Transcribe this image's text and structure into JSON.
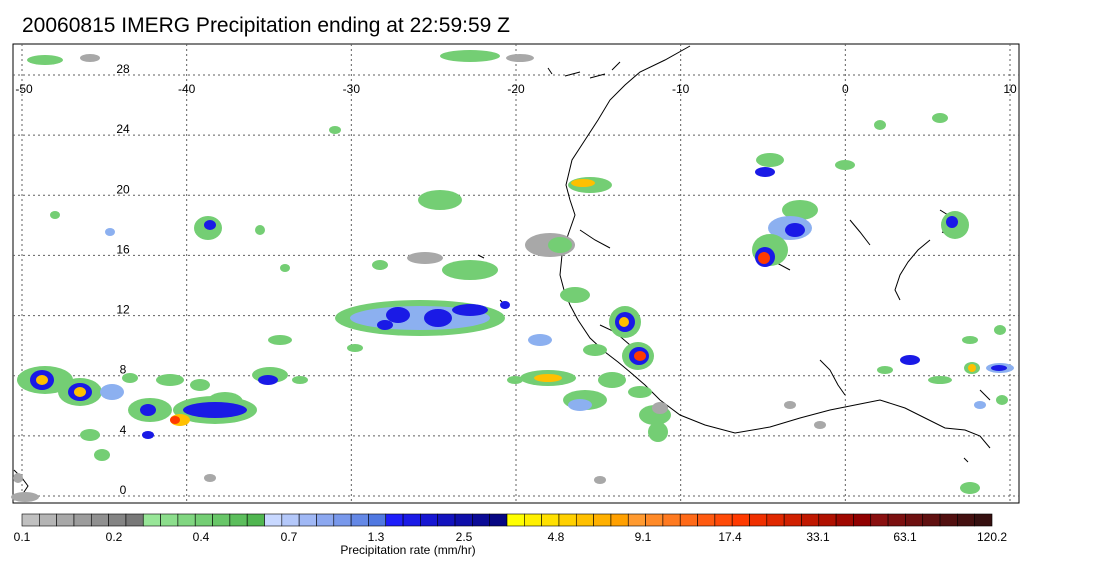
{
  "title": "20060815 IMERG Precipitation ending at 22:59:59 Z",
  "map": {
    "lon_range": [
      -50,
      10
    ],
    "lat_range": [
      -1,
      30
    ],
    "lon_ticks": [
      "-50",
      "-40",
      "-30",
      "-20",
      "-10",
      "0",
      "10"
    ],
    "lat_ticks": [
      "28",
      "24",
      "20",
      "16",
      "12",
      "8",
      "4",
      "0"
    ],
    "gridlines": "dotted",
    "coastlines": true
  },
  "colorbar": {
    "label": "Precipitation rate (mm/hr)",
    "tick_labels": [
      "0.1",
      "0.2",
      "0.4",
      "0.7",
      "1.3",
      "2.5",
      "4.8",
      "9.1",
      "17.4",
      "33.1",
      "63.1",
      "120.2"
    ],
    "colors": [
      "#c0c0c0",
      "#b4b4b4",
      "#a8a8a8",
      "#9c9c9c",
      "#909090",
      "#848484",
      "#787878",
      "#98e698",
      "#8cde8c",
      "#80d680",
      "#74ce74",
      "#68c668",
      "#5cbe5c",
      "#50b650",
      "#c8d8ff",
      "#b4c8fa",
      "#a0b8f5",
      "#8ca8f0",
      "#7898eb",
      "#6488e6",
      "#5078e1",
      "#1e1efa",
      "#1a1ae6",
      "#1616d2",
      "#1212be",
      "#0e0eaa",
      "#0a0a96",
      "#060682",
      "#ffff00",
      "#fff000",
      "#ffe000",
      "#ffd000",
      "#ffc000",
      "#ffb000",
      "#ffa000",
      "#ff9a30",
      "#ff8a28",
      "#ff7a20",
      "#ff6a18",
      "#ff5a10",
      "#ff4a08",
      "#ff3a00",
      "#f03000",
      "#e02800",
      "#d02000",
      "#c01800",
      "#b01000",
      "#a00800",
      "#900000",
      "#8a1010",
      "#7c1010",
      "#6e1010",
      "#601010",
      "#521010",
      "#441010",
      "#361010"
    ]
  }
}
